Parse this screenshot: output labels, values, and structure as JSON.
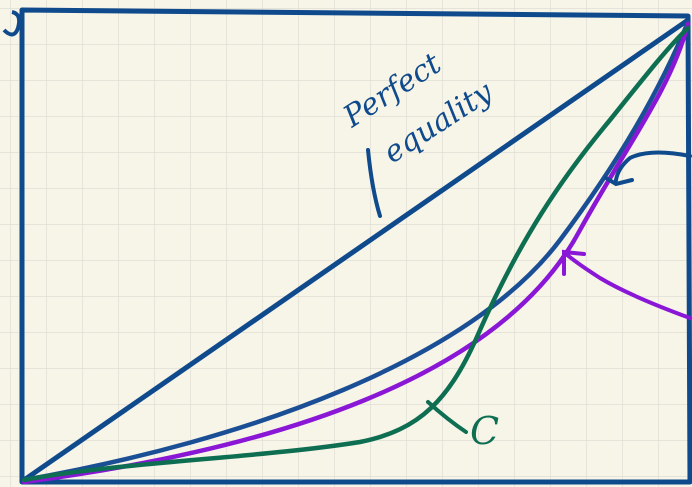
{
  "annotations": {
    "perfect_equality": [
      "Perfect",
      "equality"
    ],
    "curve_label": "C"
  }
}
